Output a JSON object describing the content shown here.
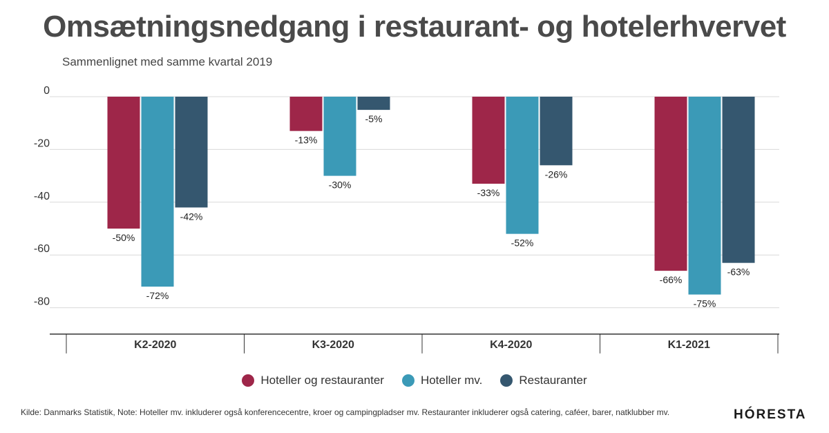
{
  "title": "Omsætningsnedgang i restaurant- og hotelerhvervet",
  "subtitle": "Sammenlignet med samme kvartal 2019",
  "footnote": "Kilde: Danmarks Statistik, Note: Hoteller mv. inkluderer også konferencecentre, kroer og campingpladser mv. Restauranter inkluderer også catering, caféer, barer, natklubber mv.",
  "logo_text": "HÓRESTA",
  "chart_data": {
    "type": "bar",
    "categories": [
      "K2-2020",
      "K3-2020",
      "K4-2020",
      "K1-2021"
    ],
    "series": [
      {
        "name": "Hoteller og restauranter",
        "color": "#9e2649",
        "values": [
          -50,
          -13,
          -33,
          -66
        ],
        "labels": [
          "-50%",
          "-13%",
          "-33%",
          "-66%"
        ]
      },
      {
        "name": "Hoteller mv.",
        "color": "#3b9ab7",
        "values": [
          -72,
          -30,
          -52,
          -75
        ],
        "labels": [
          "-72%",
          "-30%",
          "-52%",
          "-75%"
        ]
      },
      {
        "name": "Restauranter",
        "color": "#35576f",
        "values": [
          -42,
          -5,
          -26,
          -63
        ],
        "labels": [
          "-42%",
          "-5%",
          "-26%",
          "-63%"
        ]
      }
    ],
    "ylim": [
      -90,
      0
    ],
    "yticks": [
      0,
      -20,
      -40,
      -60,
      -80
    ],
    "grid": true,
    "legend": "bottom-center"
  }
}
